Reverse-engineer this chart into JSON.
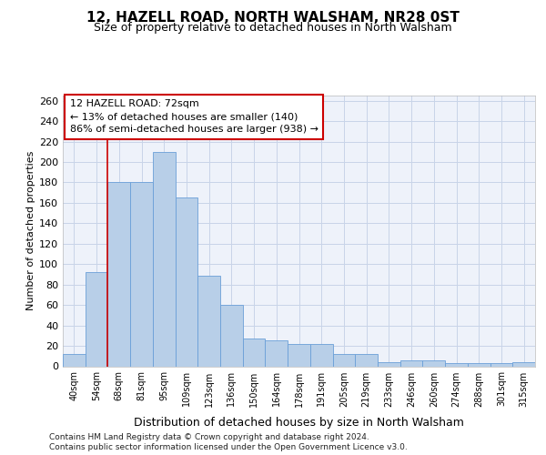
{
  "title": "12, HAZELL ROAD, NORTH WALSHAM, NR28 0ST",
  "subtitle": "Size of property relative to detached houses in North Walsham",
  "xlabel": "Distribution of detached houses by size in North Walsham",
  "ylabel": "Number of detached properties",
  "categories": [
    "40sqm",
    "54sqm",
    "68sqm",
    "81sqm",
    "95sqm",
    "109sqm",
    "123sqm",
    "136sqm",
    "150sqm",
    "164sqm",
    "178sqm",
    "191sqm",
    "205sqm",
    "219sqm",
    "233sqm",
    "246sqm",
    "260sqm",
    "274sqm",
    "288sqm",
    "301sqm",
    "315sqm"
  ],
  "values": [
    12,
    92,
    180,
    180,
    210,
    165,
    89,
    60,
    27,
    25,
    22,
    22,
    12,
    12,
    4,
    6,
    6,
    3,
    3,
    3,
    4
  ],
  "bar_color": "#b8cfe8",
  "bar_edge_color": "#6a9fd8",
  "grid_color": "#c8d4e8",
  "background_color": "#eef2fa",
  "annotation_text": "12 HAZELL ROAD: 72sqm\n← 13% of detached houses are smaller (140)\n86% of semi-detached houses are larger (938) →",
  "annotation_box_color": "#ffffff",
  "annotation_box_edge_color": "#cc0000",
  "red_line_x": 2,
  "ylim": [
    0,
    265
  ],
  "yticks": [
    0,
    20,
    40,
    60,
    80,
    100,
    120,
    140,
    160,
    180,
    200,
    220,
    240,
    260
  ],
  "footer_line1": "Contains HM Land Registry data © Crown copyright and database right 2024.",
  "footer_line2": "Contains public sector information licensed under the Open Government Licence v3.0.",
  "title_fontsize": 11,
  "subtitle_fontsize": 9,
  "ylabel_fontsize": 8,
  "xlabel_fontsize": 9,
  "ytick_fontsize": 8,
  "xtick_fontsize": 7
}
